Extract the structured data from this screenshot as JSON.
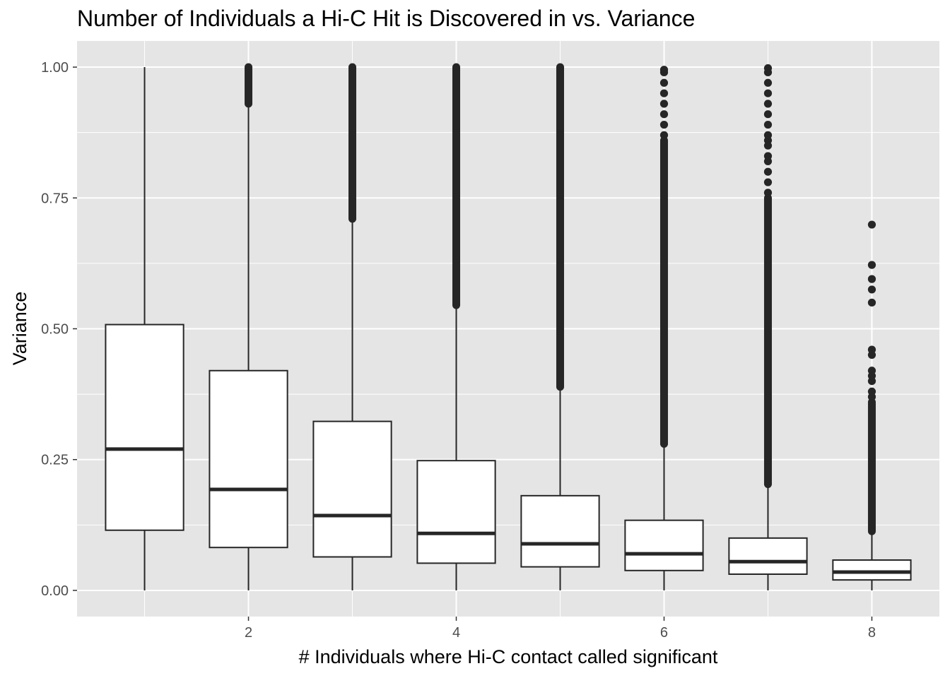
{
  "chart_data": {
    "type": "boxplot",
    "title": "Number of Individuals a Hi-C Hit is Discovered in vs. Variance",
    "xlabel": "# Individuals where Hi-C contact called significant",
    "ylabel": "Variance",
    "xlim": [
      0.35,
      8.65
    ],
    "ylim": [
      -0.05,
      1.05
    ],
    "x_ticks": [
      2,
      4,
      6,
      8
    ],
    "y_ticks": [
      0,
      0.25,
      0.5,
      0.75,
      1.0
    ],
    "y_tick_labels": [
      "0.00",
      "0.25",
      "0.50",
      "0.75",
      "1.00"
    ],
    "grid": true,
    "boxes": [
      {
        "x": 1,
        "lower_whisker": 0.0,
        "q1": 0.115,
        "median": 0.27,
        "q3": 0.508,
        "upper_whisker": 1.0,
        "outlier_bands": [],
        "outliers": []
      },
      {
        "x": 2,
        "lower_whisker": 0.0,
        "q1": 0.082,
        "median": 0.193,
        "q3": 0.42,
        "upper_whisker": 0.93,
        "outlier_bands": [
          [
            0.93,
            1.0
          ]
        ],
        "outliers": []
      },
      {
        "x": 3,
        "lower_whisker": 0.0,
        "q1": 0.064,
        "median": 0.143,
        "q3": 0.323,
        "upper_whisker": 0.71,
        "outlier_bands": [
          [
            0.71,
            1.0
          ]
        ],
        "outliers": []
      },
      {
        "x": 4,
        "lower_whisker": 0.0,
        "q1": 0.052,
        "median": 0.109,
        "q3": 0.248,
        "upper_whisker": 0.545,
        "outlier_bands": [
          [
            0.545,
            1.0
          ]
        ],
        "outliers": []
      },
      {
        "x": 5,
        "lower_whisker": 0.0,
        "q1": 0.045,
        "median": 0.089,
        "q3": 0.181,
        "upper_whisker": 0.389,
        "outlier_bands": [
          [
            0.389,
            1.0
          ]
        ],
        "outliers": []
      },
      {
        "x": 6,
        "lower_whisker": 0.0,
        "q1": 0.038,
        "median": 0.07,
        "q3": 0.134,
        "upper_whisker": 0.28,
        "outlier_bands": [
          [
            0.28,
            0.86
          ]
        ],
        "outliers": [
          0.87,
          0.89,
          0.91,
          0.93,
          0.95,
          0.97,
          0.99,
          0.995
        ]
      },
      {
        "x": 7,
        "lower_whisker": 0.0,
        "q1": 0.031,
        "median": 0.055,
        "q3": 0.1,
        "upper_whisker": 0.203,
        "outlier_bands": [
          [
            0.203,
            0.75
          ]
        ],
        "outliers": [
          0.76,
          0.78,
          0.8,
          0.82,
          0.83,
          0.85,
          0.86,
          0.87,
          0.89,
          0.91,
          0.93,
          0.95,
          0.97,
          0.99,
          0.998
        ]
      },
      {
        "x": 8,
        "lower_whisker": 0.0,
        "q1": 0.02,
        "median": 0.035,
        "q3": 0.058,
        "upper_whisker": 0.113,
        "outlier_bands": [
          [
            0.113,
            0.36
          ]
        ],
        "outliers": [
          0.37,
          0.38,
          0.4,
          0.41,
          0.42,
          0.45,
          0.46,
          0.55,
          0.575,
          0.595,
          0.622,
          0.699
        ]
      }
    ]
  }
}
